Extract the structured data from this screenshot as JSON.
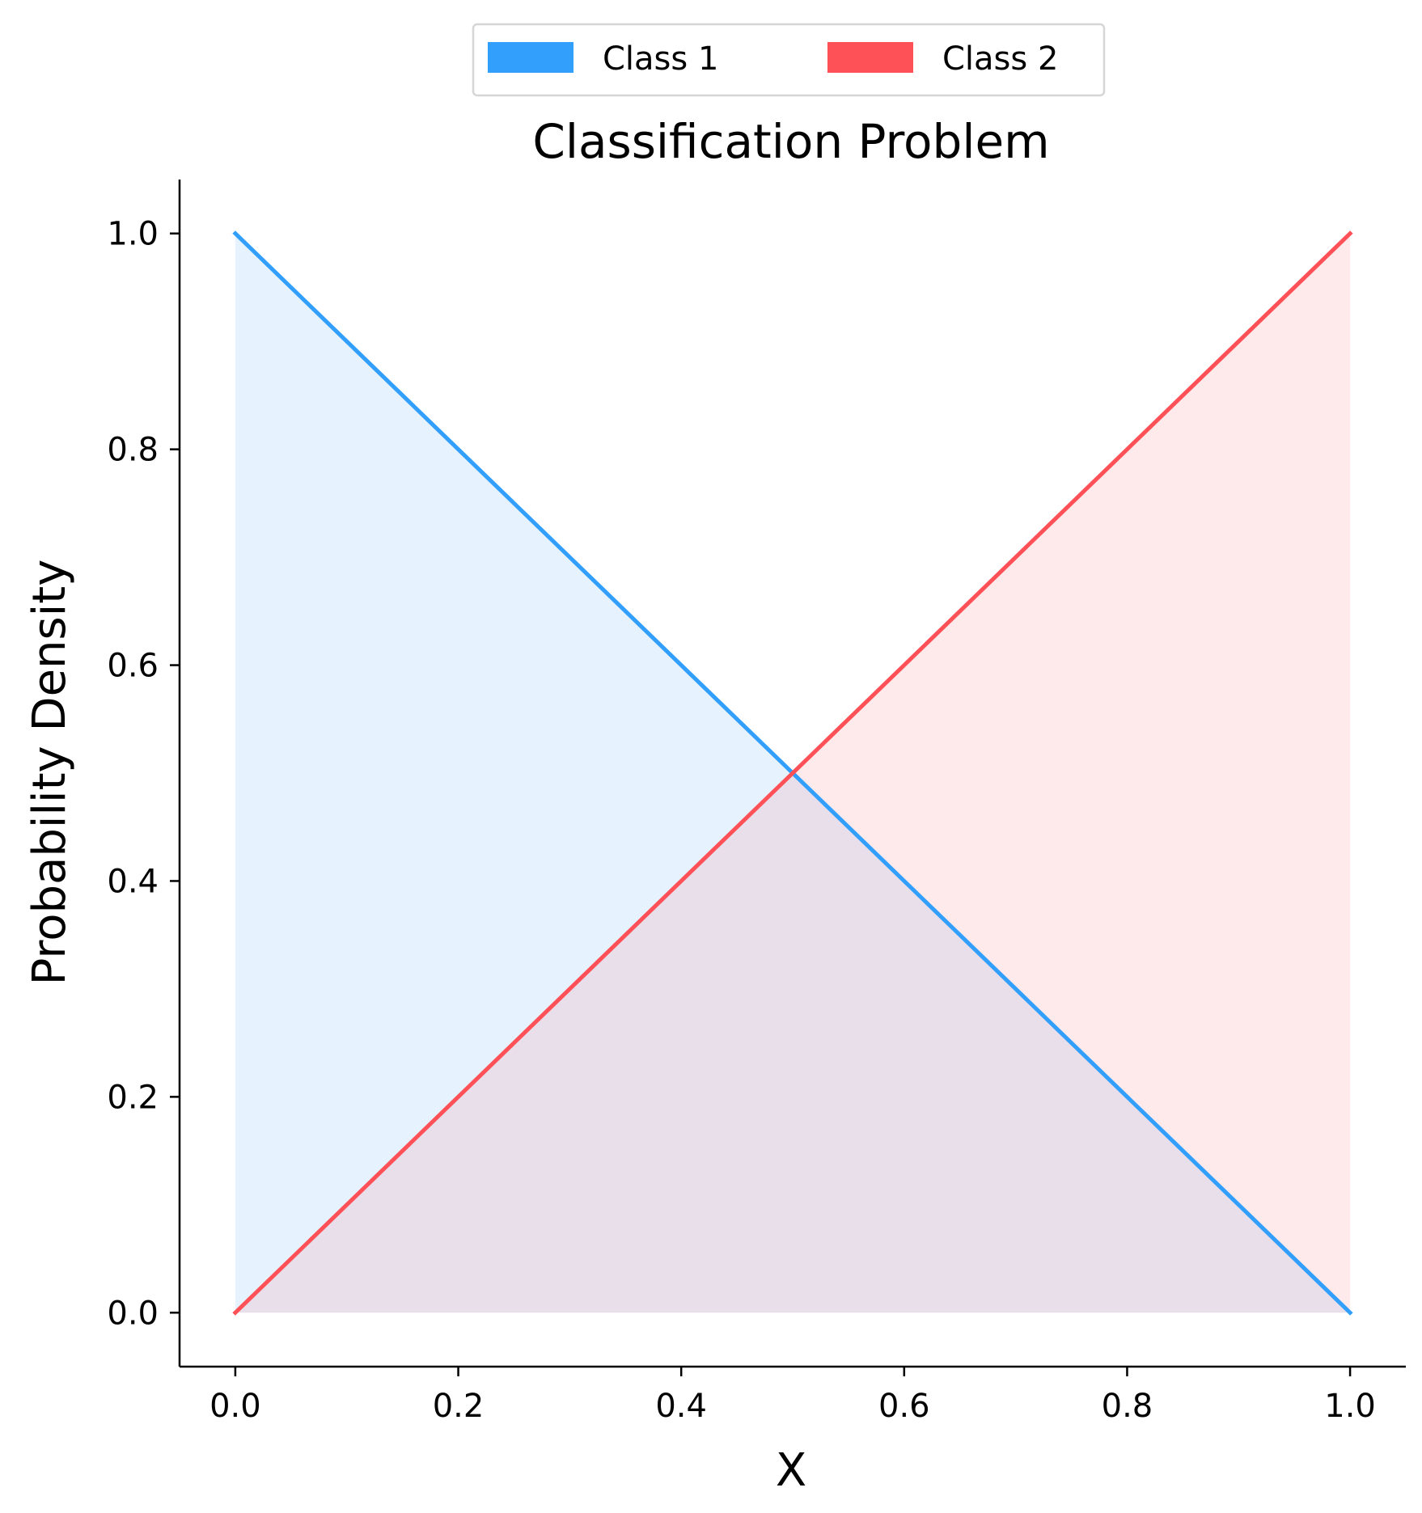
{
  "chart_data": {
    "type": "area",
    "title": "Classification Problem",
    "xlabel": "X",
    "ylabel": "Probability Density",
    "xlim": [
      -0.05,
      1.05
    ],
    "ylim": [
      -0.05,
      1.05
    ],
    "xticks": [
      0.0,
      0.2,
      0.4,
      0.6,
      0.8,
      1.0
    ],
    "xtick_labels": [
      "0.0",
      "0.2",
      "0.4",
      "0.6",
      "0.8",
      "1.0"
    ],
    "yticks": [
      0.0,
      0.2,
      0.4,
      0.6,
      0.8,
      1.0
    ],
    "ytick_labels": [
      "0.0",
      "0.2",
      "0.4",
      "0.6",
      "0.8",
      "1.0"
    ],
    "grid": false,
    "legend_placement": "top-center",
    "series": [
      {
        "name": "Class 1",
        "x": [
          0.0,
          1.0
        ],
        "y": [
          1.0,
          0.0
        ],
        "color": "#339ffd",
        "fill_color": "#e8f4fd"
      },
      {
        "name": "Class 2",
        "x": [
          0.0,
          1.0
        ],
        "y": [
          0.0,
          1.0
        ],
        "color": "#fd5157",
        "fill_color": "#fdebed"
      }
    ]
  }
}
